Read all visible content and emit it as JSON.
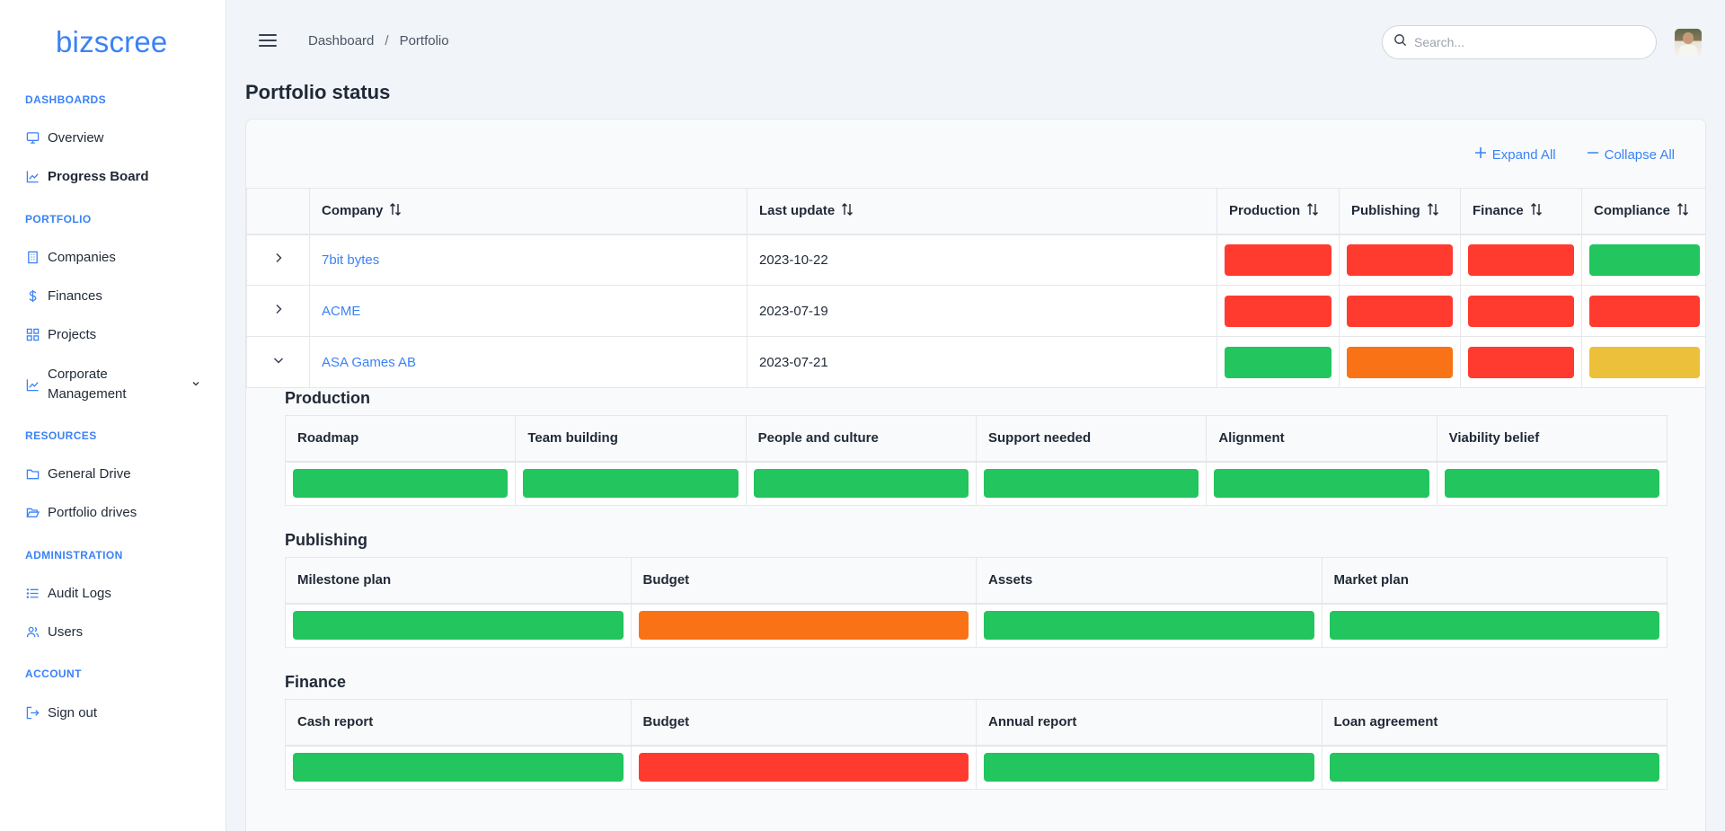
{
  "app": {
    "logo": "bizscree"
  },
  "colors": {
    "accent": "#3b82f6",
    "red": "#ff3b30",
    "green": "#22c55e",
    "orange": "#f97316",
    "yellow": "#ecc03a"
  },
  "sidebar": {
    "sections": [
      {
        "title": "DASHBOARDS"
      },
      {
        "title": "PORTFOLIO"
      },
      {
        "title": "RESOURCES"
      },
      {
        "title": "ADMINISTRATION"
      },
      {
        "title": "ACCOUNT"
      }
    ],
    "items": [
      {
        "label": "Overview",
        "icon": "monitor-icon"
      },
      {
        "label": "Progress Board",
        "icon": "chart-line-icon",
        "active": true
      },
      {
        "label": "Companies",
        "icon": "building-icon"
      },
      {
        "label": "Finances",
        "icon": "dollar-icon"
      },
      {
        "label": "Projects",
        "icon": "grid-icon"
      },
      {
        "label": "Corporate Management",
        "icon": "chart-line-icon"
      },
      {
        "label": "General Drive",
        "icon": "folder-icon"
      },
      {
        "label": "Portfolio drives",
        "icon": "folder-open-icon"
      },
      {
        "label": "Audit Logs",
        "icon": "list-icon"
      },
      {
        "label": "Users",
        "icon": "users-icon"
      },
      {
        "label": "Sign out",
        "icon": "sign-out-icon"
      }
    ]
  },
  "header": {
    "breadcrumb": [
      "Dashboard",
      "Portfolio"
    ],
    "breadcrumb_sep": "/",
    "search_placeholder": "Search..."
  },
  "main": {
    "title": "Portfolio status",
    "expand_all": "Expand All",
    "collapse_all": "Collapse All",
    "columns": [
      "Company",
      "Last update",
      "Production",
      "Publishing",
      "Finance",
      "Compliance"
    ],
    "rows": [
      {
        "company": "7bit bytes",
        "last_update": "2023-10-22",
        "expanded": false,
        "status": [
          "red",
          "red",
          "red",
          "green"
        ]
      },
      {
        "company": "ACME",
        "last_update": "2023-07-19",
        "expanded": false,
        "status": [
          "red",
          "red",
          "red",
          "red"
        ]
      },
      {
        "company": "ASA Games AB",
        "last_update": "2023-07-21",
        "expanded": true,
        "status": [
          "green",
          "orange",
          "red",
          "yellow"
        ]
      }
    ]
  },
  "details": {
    "production": {
      "title": "Production",
      "columns": [
        "Roadmap",
        "Team building",
        "People and culture",
        "Support needed",
        "Alignment",
        "Viability belief"
      ],
      "status": [
        "green",
        "green",
        "green",
        "green",
        "green",
        "green"
      ]
    },
    "publishing": {
      "title": "Publishing",
      "columns": [
        "Milestone plan",
        "Budget",
        "Assets",
        "Market plan"
      ],
      "status": [
        "green",
        "orange",
        "green",
        "green"
      ]
    },
    "finance": {
      "title": "Finance",
      "columns": [
        "Cash report",
        "Budget",
        "Annual report",
        "Loan agreement"
      ],
      "status": [
        "green",
        "red",
        "green",
        "green"
      ]
    }
  }
}
